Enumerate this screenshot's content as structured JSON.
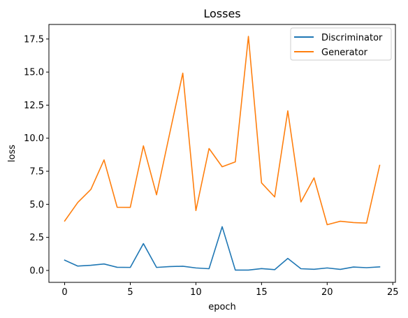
{
  "chart_data": {
    "type": "line",
    "title": "Losses",
    "xlabel": "epoch",
    "ylabel": "loss",
    "xlim": [
      -1.2,
      25.2
    ],
    "ylim": [
      -0.9,
      18.6
    ],
    "xticks": [
      0,
      5,
      10,
      15,
      20,
      25
    ],
    "xtick_labels": [
      "0",
      "5",
      "10",
      "15",
      "20",
      "25"
    ],
    "yticks": [
      0.0,
      2.5,
      5.0,
      7.5,
      10.0,
      12.5,
      15.0,
      17.5
    ],
    "ytick_labels": [
      "0.0",
      "2.5",
      "5.0",
      "7.5",
      "10.0",
      "12.5",
      "15.0",
      "17.5"
    ],
    "grid": false,
    "legend_position": "top-right",
    "x": [
      0,
      1,
      2,
      3,
      4,
      5,
      6,
      7,
      8,
      9,
      10,
      11,
      12,
      13,
      14,
      15,
      16,
      17,
      18,
      19,
      20,
      21,
      22,
      23,
      24
    ],
    "series": [
      {
        "name": "Discriminator",
        "color": "#1f77b4",
        "values": [
          0.78,
          0.33,
          0.39,
          0.49,
          0.24,
          0.23,
          2.03,
          0.23,
          0.29,
          0.32,
          0.19,
          0.13,
          3.31,
          0.03,
          0.03,
          0.14,
          0.06,
          0.91,
          0.13,
          0.09,
          0.19,
          0.08,
          0.26,
          0.21,
          0.27
        ]
      },
      {
        "name": "Generator",
        "color": "#ff7f0e",
        "values": [
          3.74,
          5.14,
          6.13,
          8.36,
          4.78,
          4.77,
          9.42,
          5.72,
          10.35,
          14.92,
          4.53,
          9.22,
          7.84,
          8.21,
          17.7,
          6.62,
          5.56,
          12.07,
          5.18,
          7.0,
          3.46,
          3.72,
          3.62,
          3.58,
          7.95
        ]
      }
    ]
  }
}
